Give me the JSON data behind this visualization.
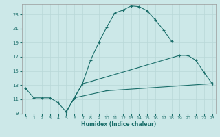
{
  "xlabel": "Humidex (Indice chaleur)",
  "bg_color": "#cce8e8",
  "grid_color_major": "#b8d8d8",
  "grid_color_minor": "#d8ecec",
  "line_color": "#1a6e6a",
  "line1": [
    [
      0,
      12.5
    ],
    [
      1,
      11.2
    ],
    [
      2,
      11.2
    ],
    [
      3,
      11.2
    ],
    [
      4,
      10.5
    ],
    [
      5,
      9.2
    ],
    [
      6,
      11.2
    ],
    [
      7,
      13.2
    ],
    [
      8,
      16.5
    ],
    [
      9,
      19.0
    ],
    [
      10,
      21.2
    ],
    [
      11,
      23.2
    ],
    [
      12,
      23.6
    ],
    [
      13,
      24.2
    ],
    [
      14,
      24.1
    ],
    [
      15,
      23.5
    ],
    [
      16,
      22.2
    ],
    [
      17,
      20.8
    ],
    [
      18,
      19.2
    ]
  ],
  "line2": [
    [
      5,
      9.2
    ],
    [
      6,
      11.2
    ],
    [
      7,
      13.2
    ],
    [
      8,
      13.5
    ],
    [
      19,
      17.2
    ],
    [
      20,
      17.2
    ],
    [
      21,
      16.5
    ],
    [
      22,
      14.8
    ],
    [
      23,
      13.2
    ]
  ],
  "line3": [
    [
      5,
      9.2
    ],
    [
      6,
      11.2
    ],
    [
      10,
      12.2
    ],
    [
      23,
      13.2
    ]
  ],
  "xlim": [
    -0.5,
    23.5
  ],
  "ylim": [
    9,
    24.5
  ],
  "xticks": [
    0,
    1,
    2,
    3,
    4,
    5,
    6,
    7,
    8,
    9,
    10,
    11,
    12,
    13,
    14,
    15,
    16,
    17,
    18,
    19,
    20,
    21,
    22,
    23
  ],
  "yticks": [
    9,
    11,
    13,
    15,
    17,
    19,
    21,
    23
  ]
}
